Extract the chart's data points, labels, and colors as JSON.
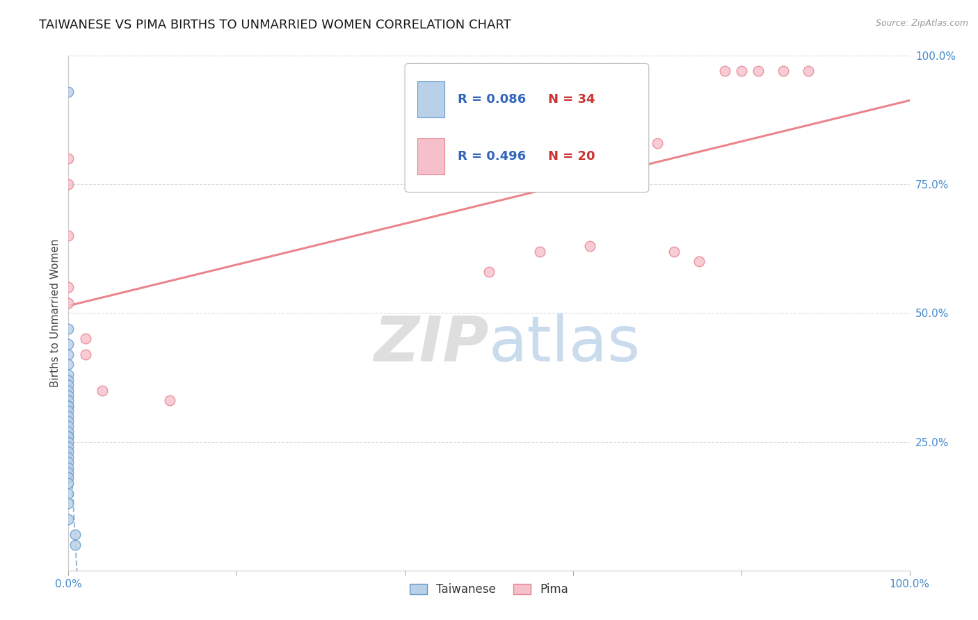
{
  "title": "TAIWANESE VS PIMA BIRTHS TO UNMARRIED WOMEN CORRELATION CHART",
  "source_text": "Source: ZipAtlas.com",
  "ylabel": "Births to Unmarried Women",
  "r_taiwanese": 0.086,
  "n_taiwanese": 34,
  "r_pima": 0.496,
  "n_pima": 20,
  "taiwanese_x": [
    0.0,
    0.0,
    0.0,
    0.0,
    0.0,
    0.0,
    0.0,
    0.0,
    0.0,
    0.0,
    0.0,
    0.0,
    0.0,
    0.0,
    0.0,
    0.0,
    0.0,
    0.0,
    0.0,
    0.0,
    0.0,
    0.0,
    0.0,
    0.0,
    0.0,
    0.0,
    0.0,
    0.0,
    0.0,
    0.0,
    0.0,
    0.0,
    0.008,
    0.008
  ],
  "taiwanese_y": [
    0.93,
    0.47,
    0.44,
    0.42,
    0.4,
    0.38,
    0.37,
    0.36,
    0.35,
    0.34,
    0.33,
    0.32,
    0.32,
    0.31,
    0.3,
    0.29,
    0.28,
    0.27,
    0.26,
    0.26,
    0.25,
    0.24,
    0.23,
    0.22,
    0.21,
    0.2,
    0.19,
    0.18,
    0.17,
    0.15,
    0.13,
    0.1,
    0.07,
    0.05
  ],
  "pima_x": [
    0.0,
    0.0,
    0.0,
    0.0,
    0.0,
    0.02,
    0.02,
    0.04,
    0.12,
    0.5,
    0.56,
    0.62,
    0.7,
    0.72,
    0.75,
    0.78,
    0.8,
    0.82,
    0.85,
    0.88
  ],
  "pima_y": [
    0.8,
    0.75,
    0.65,
    0.55,
    0.52,
    0.45,
    0.42,
    0.35,
    0.33,
    0.58,
    0.62,
    0.63,
    0.83,
    0.62,
    0.6,
    0.97,
    0.97,
    0.97,
    0.97,
    0.97
  ],
  "taiwanese_fill": "#b8d0e8",
  "taiwanese_edge": "#6699cc",
  "pima_fill": "#f5c0ca",
  "pima_edge": "#e8808e",
  "reg_taiwan_color": "#88aad4",
  "reg_pima_color": "#e87880",
  "grid_color": "#cccccc",
  "title_color": "#1a1a1a",
  "axis_color": "#4488cc",
  "legend_r_color": "#3366bb",
  "legend_n_color": "#cc3333",
  "watermark_zip_color": "#c8c8c8",
  "watermark_atlas_color": "#a8c4e4",
  "ylim": [
    0.0,
    1.0
  ],
  "xlim": [
    0.0,
    1.0
  ],
  "yticks": [
    0.25,
    0.5,
    0.75,
    1.0
  ],
  "ytick_labels": [
    "25.0%",
    "50.0%",
    "75.0%",
    "100.0%"
  ],
  "xtick_labels": [
    "0.0%",
    "",
    "",
    "",
    "",
    "100.0%"
  ],
  "marker_size": 110,
  "marker_alpha": 0.8,
  "title_fontsize": 13,
  "tick_fontsize": 11
}
